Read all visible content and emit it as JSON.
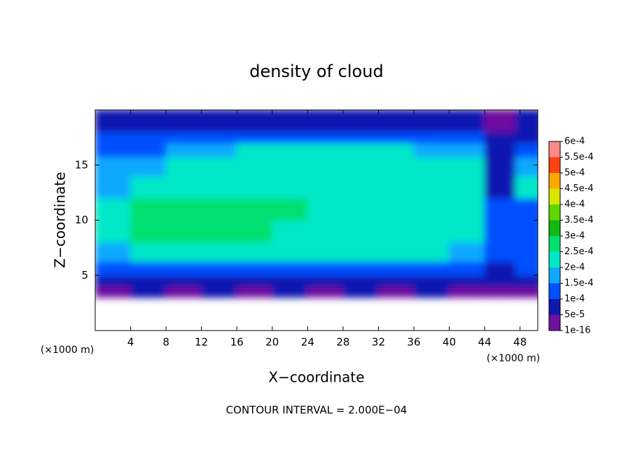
{
  "chart_data": {
    "type": "contour",
    "title": "density of cloud",
    "x_label": "X−coordinate",
    "y_label": "Z−coordinate",
    "x_unit_label": "(×1000 m)",
    "y_unit_label": "(×1000 m)",
    "note": "CONTOUR INTERVAL = 2.000E−04",
    "xlim": [
      0,
      50
    ],
    "ylim": [
      0,
      20
    ],
    "xticks": [
      4,
      8,
      12,
      16,
      20,
      24,
      28,
      32,
      36,
      40,
      44,
      48
    ],
    "yticks": [
      5,
      10,
      15
    ],
    "x": [
      2,
      6,
      10,
      14,
      18,
      22,
      26,
      30,
      34,
      38,
      42,
      46,
      49
    ],
    "y": [
      3.5,
      4.5,
      5.5,
      7,
      9,
      11,
      13,
      15,
      16.5,
      17.5,
      18.5,
      19.5
    ],
    "z": [
      [
        4e-05,
        6e-05,
        4e-05,
        5e-05,
        4e-05,
        6e-05,
        4e-05,
        5e-05,
        4e-05,
        5e-05,
        3e-05,
        4e-05,
        4e-05
      ],
      [
        9e-05,
        8e-05,
        9e-05,
        8e-05,
        9e-05,
        8e-05,
        9e-05,
        8e-05,
        9e-05,
        8e-05,
        7e-05,
        8e-05,
        7e-05
      ],
      [
        0.00013,
        0.00012,
        0.00013,
        0.00012,
        0.00013,
        0.00012,
        0.00013,
        0.00012,
        0.00013,
        0.00012,
        0.00011,
        9e-05,
        0.0001
      ],
      [
        0.00019,
        0.00021,
        0.00021,
        0.00021,
        0.00021,
        0.00021,
        0.00021,
        0.00021,
        0.00021,
        0.00021,
        0.00016,
        0.00012,
        0.00013
      ],
      [
        0.00021,
        0.00025,
        0.00025,
        0.00025,
        0.00025,
        0.00024,
        0.00024,
        0.00024,
        0.00024,
        0.00024,
        0.00021,
        0.00013,
        0.0001
      ],
      [
        0.00022,
        0.00025,
        0.00025,
        0.00025,
        0.00025,
        0.00025,
        0.00024,
        0.00024,
        0.00024,
        0.00024,
        0.00022,
        0.0001,
        0.00013
      ],
      [
        0.00018,
        0.00023,
        0.00024,
        0.00024,
        0.00024,
        0.00024,
        0.00024,
        0.00023,
        0.00023,
        0.00023,
        0.00021,
        8e-05,
        0.00021
      ],
      [
        0.00015,
        0.00019,
        0.00021,
        0.00022,
        0.00022,
        0.00022,
        0.00022,
        0.00022,
        0.00022,
        0.00022,
        0.0002,
        7e-05,
        0.00016
      ],
      [
        0.00013,
        0.00014,
        0.00016,
        0.00019,
        0.0002,
        0.0002,
        0.0002,
        0.0002,
        0.0002,
        0.00019,
        0.00016,
        6e-05,
        0.00011
      ],
      [
        0.0001,
        0.00011,
        0.00012,
        0.00013,
        0.00013,
        0.00014,
        0.00014,
        0.00014,
        0.00014,
        0.00013,
        0.00011,
        5e-05,
        9e-05
      ],
      [
        7e-05,
        8e-05,
        8e-05,
        9e-05,
        9e-05,
        9e-05,
        9e-05,
        9e-05,
        9e-05,
        9e-05,
        8e-05,
        4e-05,
        7e-05
      ],
      [
        6e-05,
        6e-05,
        6e-05,
        6e-05,
        6e-05,
        6e-05,
        6e-05,
        6e-05,
        6e-05,
        6e-05,
        6e-05,
        4e-05,
        5e-05
      ]
    ],
    "colorbar": {
      "levels": [
        {
          "value": 1e-16,
          "label": "1e-16"
        },
        {
          "value": 5e-05,
          "label": "5e-5"
        },
        {
          "value": 0.0001,
          "label": "1e-4"
        },
        {
          "value": 0.00015,
          "label": "1.5e-4"
        },
        {
          "value": 0.0002,
          "label": "2e-4"
        },
        {
          "value": 0.00025,
          "label": "2.5e-4"
        },
        {
          "value": 0.0003,
          "label": "3e-4"
        },
        {
          "value": 0.00035,
          "label": "3.5e-4"
        },
        {
          "value": 0.0004,
          "label": "4e-4"
        },
        {
          "value": 0.00045,
          "label": "4.5e-4"
        },
        {
          "value": 0.0005,
          "label": "5e-4"
        },
        {
          "value": 0.00055,
          "label": "5.5e-4"
        },
        {
          "value": 0.0006,
          "label": "6e-4"
        }
      ],
      "colors": [
        "#7010a0",
        "#1018b0",
        "#0050ff",
        "#10a8ff",
        "#00e8c8",
        "#00e070",
        "#10b810",
        "#60d800",
        "#d8e800",
        "#ffa800",
        "#ff4010",
        "#ff8888"
      ]
    }
  }
}
